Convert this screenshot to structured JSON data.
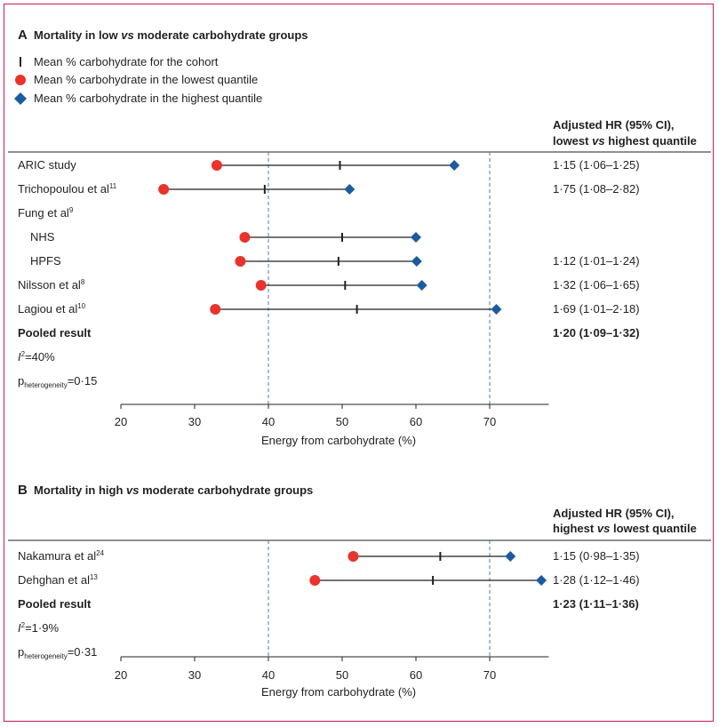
{
  "colors": {
    "lowest_marker": "#e8342d",
    "highest_marker": "#1b5b9e",
    "cohort_marker": "#231f20",
    "reference_line": "#4a7fa8",
    "frame": "#c9195e"
  },
  "legend": {
    "cohort": "Mean % carbohydrate for the cohort",
    "lowest": "Mean % carbohydrate in the lowest quantile",
    "highest": "Mean % carbohydrate in the highest quantile"
  },
  "chart_data": [
    {
      "type": "forest",
      "panel": "A",
      "title": "Mortality in low vs moderate carbohydrate groups",
      "hr_header_line1": "Adjusted HR (95% CI),",
      "hr_header_line2": "lowest vs highest quantile",
      "xlabel": "Energy from carbohydrate (%)",
      "xlim": [
        20,
        78
      ],
      "xticks": [
        20,
        30,
        40,
        50,
        60,
        70
      ],
      "reference_lines": [
        40,
        70
      ],
      "rows": [
        {
          "label": "ARIC study",
          "sup": "",
          "low": 33,
          "mean": 49.7,
          "high": 65.2,
          "hr": "1·15 (1·06–1·25)"
        },
        {
          "label": "Trichopoulou et al",
          "sup": "11",
          "low": 25.8,
          "mean": 39.5,
          "high": 51,
          "hr": "1·75 (1·08–2·82)"
        },
        {
          "label": "Fung et al",
          "sup": "9",
          "low": null,
          "mean": null,
          "high": null,
          "hr": ""
        },
        {
          "label": "NHS",
          "sup": "",
          "indent": true,
          "low": 36.8,
          "mean": 50,
          "high": 60,
          "hr": ""
        },
        {
          "label": "HPFS",
          "sup": "",
          "indent": true,
          "low": 36.2,
          "mean": 49.5,
          "high": 60.1,
          "hr": "1·12 (1·01–1·24)"
        },
        {
          "label": "Nilsson et al",
          "sup": "8",
          "low": 39,
          "mean": 50.4,
          "high": 60.8,
          "hr": "1·32 (1·06–1·65)"
        },
        {
          "label": "Lagiou et al",
          "sup": "10",
          "low": 32.8,
          "mean": 52,
          "high": 70.9,
          "hr": "1·69 (1·01–2·18)"
        }
      ],
      "pooled": {
        "label": "Pooled result",
        "hr": "1·20 (1·09–1·32)"
      },
      "i2": {
        "symbol": "I",
        "sup": "2",
        "value": "=40%"
      },
      "p_het": {
        "symbol": "p",
        "sub": "heterogeneity",
        "value": "=0·15"
      }
    },
    {
      "type": "forest",
      "panel": "B",
      "title": "Mortality in high vs moderate carbohydrate groups",
      "hr_header_line1": "Adjusted HR (95% CI),",
      "hr_header_line2": "highest vs lowest quantile",
      "xlabel": "Energy from carbohydrate (%)",
      "xlim": [
        20,
        78
      ],
      "xticks": [
        20,
        30,
        40,
        50,
        60,
        70
      ],
      "reference_lines": [
        40,
        70
      ],
      "rows": [
        {
          "label": "Nakamura et al",
          "sup": "24",
          "low": 51.5,
          "mean": 63.3,
          "high": 72.8,
          "hr": "1·15 (0·98–1·35)"
        },
        {
          "label": "Dehghan et al",
          "sup": "13",
          "low": 46.3,
          "mean": 62.3,
          "high": 77,
          "hr": "1·28 (1·12–1·46)"
        }
      ],
      "pooled": {
        "label": "Pooled result",
        "hr": "1·23 (1·11–1·36)"
      },
      "i2": {
        "symbol": "I",
        "sup": "2",
        "value": "=1·9%"
      },
      "p_het": {
        "symbol": "p",
        "sub": "heterogeneity",
        "value": "=0·31"
      }
    }
  ]
}
